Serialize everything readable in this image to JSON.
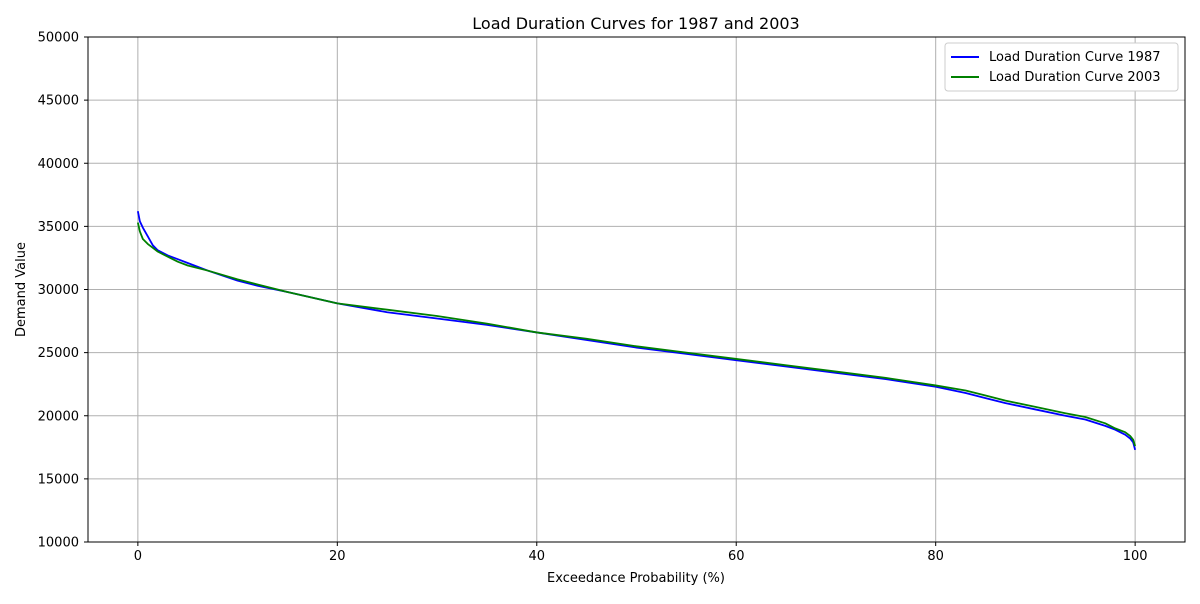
{
  "chart_data": {
    "type": "line",
    "title": "Load Duration Curves for 1987 and 2003",
    "xlabel": "Exceedance Probability (%)",
    "ylabel": "Demand Value",
    "xlim": [
      -5,
      105
    ],
    "ylim": [
      10000,
      50000
    ],
    "x_ticks": [
      0,
      20,
      40,
      60,
      80,
      100
    ],
    "y_ticks": [
      10000,
      15000,
      20000,
      25000,
      30000,
      35000,
      40000,
      45000,
      50000
    ],
    "x_tick_labels": [
      "0",
      "20",
      "40",
      "60",
      "80",
      "100"
    ],
    "y_tick_labels": [
      "10000",
      "15000",
      "20000",
      "25000",
      "30000",
      "35000",
      "40000",
      "45000",
      "50000"
    ],
    "grid": true,
    "legend_position": "top-right",
    "series": [
      {
        "name": "Load Duration Curve 1987",
        "color": "#0000ff",
        "points": [
          [
            0,
            36200
          ],
          [
            0.2,
            35400
          ],
          [
            0.5,
            34900
          ],
          [
            1,
            34200
          ],
          [
            1.5,
            33500
          ],
          [
            2,
            33100
          ],
          [
            3,
            32700
          ],
          [
            4,
            32400
          ],
          [
            5,
            32100
          ],
          [
            7,
            31500
          ],
          [
            10,
            30700
          ],
          [
            12,
            30300
          ],
          [
            15,
            29800
          ],
          [
            20,
            28900
          ],
          [
            25,
            28200
          ],
          [
            30,
            27700
          ],
          [
            35,
            27200
          ],
          [
            40,
            26600
          ],
          [
            45,
            26000
          ],
          [
            50,
            25400
          ],
          [
            55,
            24900
          ],
          [
            60,
            24400
          ],
          [
            65,
            23900
          ],
          [
            70,
            23400
          ],
          [
            75,
            22900
          ],
          [
            80,
            22300
          ],
          [
            83,
            21800
          ],
          [
            85,
            21400
          ],
          [
            87,
            21000
          ],
          [
            90,
            20500
          ],
          [
            93,
            20000
          ],
          [
            95,
            19700
          ],
          [
            97,
            19200
          ],
          [
            98,
            18900
          ],
          [
            99,
            18500
          ],
          [
            99.5,
            18200
          ],
          [
            99.8,
            17900
          ],
          [
            100,
            17300
          ]
        ]
      },
      {
        "name": "Load Duration Curve 2003",
        "color": "#008000",
        "points": [
          [
            0,
            35300
          ],
          [
            0.2,
            34600
          ],
          [
            0.5,
            34000
          ],
          [
            1,
            33600
          ],
          [
            1.5,
            33300
          ],
          [
            2,
            33000
          ],
          [
            3,
            32600
          ],
          [
            4,
            32200
          ],
          [
            5,
            31900
          ],
          [
            7,
            31500
          ],
          [
            10,
            30800
          ],
          [
            12,
            30400
          ],
          [
            15,
            29800
          ],
          [
            20,
            28900
          ],
          [
            25,
            28400
          ],
          [
            30,
            27900
          ],
          [
            35,
            27300
          ],
          [
            40,
            26600
          ],
          [
            45,
            26100
          ],
          [
            50,
            25500
          ],
          [
            55,
            25000
          ],
          [
            60,
            24500
          ],
          [
            65,
            24000
          ],
          [
            70,
            23500
          ],
          [
            75,
            23000
          ],
          [
            80,
            22400
          ],
          [
            83,
            22000
          ],
          [
            85,
            21600
          ],
          [
            87,
            21200
          ],
          [
            90,
            20700
          ],
          [
            93,
            20200
          ],
          [
            95,
            19900
          ],
          [
            97,
            19400
          ],
          [
            98,
            19000
          ],
          [
            99,
            18700
          ],
          [
            99.5,
            18400
          ],
          [
            99.8,
            18100
          ],
          [
            100,
            17600
          ]
        ]
      }
    ]
  }
}
